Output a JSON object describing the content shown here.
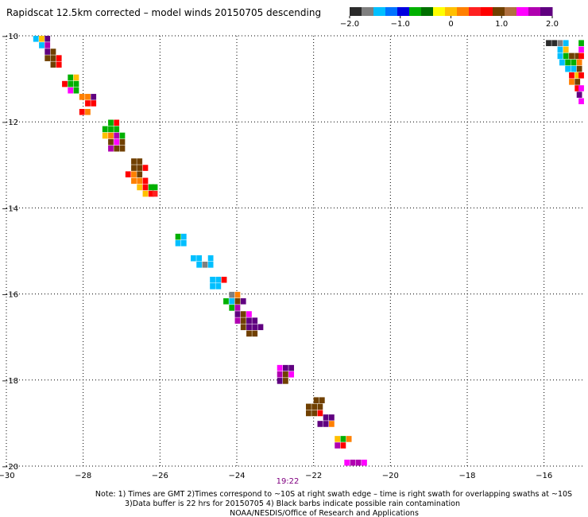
{
  "header": {
    "title": "Rapidscat 12.5km corrected – model winds 20150705 descending"
  },
  "colorbar": {
    "colors": [
      "#2b2b2b",
      "#7f7f7f",
      "#00bfff",
      "#0073ff",
      "#0000e0",
      "#00b000",
      "#007000",
      "#ffff00",
      "#ffc000",
      "#ff8000",
      "#ff2020",
      "#ff0000",
      "#704000",
      "#b07040",
      "#ff00ff",
      "#b000b0",
      "#600080"
    ],
    "ticks": [
      {
        "label": "−2.0",
        "value": -2.0
      },
      {
        "label": "−1.0",
        "value": -1.0
      },
      {
        "label": "0",
        "value": 0
      },
      {
        "label": "1.0",
        "value": 1.0
      },
      {
        "label": "2.0",
        "value": 2.0
      }
    ]
  },
  "chart_data": {
    "type": "heatmap",
    "title": "Rapidscat 12.5km corrected – model winds 20150705 descending",
    "x_axis": {
      "range": [
        -30,
        -15
      ],
      "ticks": [
        -30,
        -28,
        -26,
        -24,
        -22,
        -20,
        -18,
        -16
      ],
      "tick_labels": [
        "−30",
        "−28",
        "−26",
        "−24",
        "−22",
        "−20",
        "−18",
        "−16"
      ]
    },
    "y_axis": {
      "range": [
        -20,
        -10
      ],
      "ticks": [
        -10,
        -12,
        -14,
        -16,
        -18,
        -20
      ],
      "tick_labels": [
        "−10",
        "−12",
        "−14",
        "−16",
        "−18",
        "−20"
      ]
    },
    "grid": true,
    "value_range": [
      -2.0,
      2.0
    ],
    "cell_size_deg": 0.14,
    "cells": [
      {
        "x": -29.3,
        "y": -10.0,
        "v": -1.5
      },
      {
        "x": -29.15,
        "y": -10.0,
        "v": 0.1
      },
      {
        "x": -29.0,
        "y": -10.0,
        "v": 2.0
      },
      {
        "x": -29.15,
        "y": -10.15,
        "v": -1.5
      },
      {
        "x": -29.0,
        "y": -10.15,
        "v": 1.6
      },
      {
        "x": -29.0,
        "y": -10.3,
        "v": 1.95
      },
      {
        "x": -28.85,
        "y": -10.3,
        "v": 0.9
      },
      {
        "x": -29.0,
        "y": -10.45,
        "v": 0.9
      },
      {
        "x": -28.85,
        "y": -10.45,
        "v": 0.9
      },
      {
        "x": -28.7,
        "y": -10.45,
        "v": 0.8
      },
      {
        "x": -28.85,
        "y": -10.6,
        "v": 0.9
      },
      {
        "x": -28.7,
        "y": -10.6,
        "v": 0.8
      },
      {
        "x": -28.4,
        "y": -10.9,
        "v": -0.8
      },
      {
        "x": -28.25,
        "y": -10.9,
        "v": 0.1
      },
      {
        "x": -28.55,
        "y": -11.05,
        "v": 0.6
      },
      {
        "x": -28.4,
        "y": -11.05,
        "v": -0.8
      },
      {
        "x": -28.25,
        "y": -11.05,
        "v": -0.7
      },
      {
        "x": -28.4,
        "y": -11.2,
        "v": 1.3
      },
      {
        "x": -28.25,
        "y": -11.2,
        "v": -0.7
      },
      {
        "x": -28.1,
        "y": -11.35,
        "v": 0.2
      },
      {
        "x": -27.95,
        "y": -11.35,
        "v": 0.3
      },
      {
        "x": -27.8,
        "y": -11.35,
        "v": 1.9
      },
      {
        "x": -27.95,
        "y": -11.5,
        "v": 0.6
      },
      {
        "x": -27.8,
        "y": -11.5,
        "v": 0.6
      },
      {
        "x": -28.1,
        "y": -11.7,
        "v": 0.6
      },
      {
        "x": -27.95,
        "y": -11.7,
        "v": 0.3
      },
      {
        "x": -27.35,
        "y": -11.95,
        "v": -0.8
      },
      {
        "x": -27.2,
        "y": -11.95,
        "v": 0.6
      },
      {
        "x": -27.5,
        "y": -12.1,
        "v": -0.8
      },
      {
        "x": -27.35,
        "y": -12.1,
        "v": -0.8
      },
      {
        "x": -27.2,
        "y": -12.1,
        "v": -0.7
      },
      {
        "x": -27.5,
        "y": -12.25,
        "v": 0.1
      },
      {
        "x": -27.35,
        "y": -12.25,
        "v": 0.2
      },
      {
        "x": -27.2,
        "y": -12.25,
        "v": 1.6
      },
      {
        "x": -27.35,
        "y": -12.4,
        "v": 0.9
      },
      {
        "x": -27.2,
        "y": -12.4,
        "v": 1.3
      },
      {
        "x": -27.35,
        "y": -12.55,
        "v": 1.6
      },
      {
        "x": -27.2,
        "y": -12.55,
        "v": 0.9
      },
      {
        "x": -27.05,
        "y": -12.25,
        "v": -0.7
      },
      {
        "x": -27.05,
        "y": -12.4,
        "v": 0.9
      },
      {
        "x": -27.05,
        "y": -12.55,
        "v": 0.9
      },
      {
        "x": -26.75,
        "y": -12.85,
        "v": 0.9
      },
      {
        "x": -26.6,
        "y": -12.85,
        "v": 0.9
      },
      {
        "x": -26.75,
        "y": -13.0,
        "v": 0.9
      },
      {
        "x": -26.6,
        "y": -13.0,
        "v": 0.9
      },
      {
        "x": -26.45,
        "y": -13.0,
        "v": 0.6
      },
      {
        "x": -26.9,
        "y": -13.15,
        "v": 0.6
      },
      {
        "x": -26.75,
        "y": -13.15,
        "v": 0.2
      },
      {
        "x": -26.6,
        "y": -13.15,
        "v": 0.9
      },
      {
        "x": -26.75,
        "y": -13.3,
        "v": 0.2
      },
      {
        "x": -26.6,
        "y": -13.3,
        "v": 0.3
      },
      {
        "x": -26.45,
        "y": -13.3,
        "v": 0.6
      },
      {
        "x": -26.6,
        "y": -13.45,
        "v": 0.1
      },
      {
        "x": -26.45,
        "y": -13.45,
        "v": 0.6
      },
      {
        "x": -26.3,
        "y": -13.45,
        "v": -0.7
      },
      {
        "x": -26.2,
        "y": -13.45,
        "v": -0.7
      },
      {
        "x": -26.45,
        "y": -13.6,
        "v": 0.1
      },
      {
        "x": -26.3,
        "y": -13.6,
        "v": 0.6
      },
      {
        "x": -26.2,
        "y": -13.6,
        "v": 0.5
      },
      {
        "x": -25.6,
        "y": -14.6,
        "v": -0.8
      },
      {
        "x": -25.45,
        "y": -14.6,
        "v": -1.3
      },
      {
        "x": -25.6,
        "y": -14.75,
        "v": -1.3
      },
      {
        "x": -25.45,
        "y": -14.75,
        "v": -1.3
      },
      {
        "x": -25.2,
        "y": -15.1,
        "v": -1.3
      },
      {
        "x": -25.05,
        "y": -15.1,
        "v": -1.3
      },
      {
        "x": -25.05,
        "y": -15.25,
        "v": -1.3
      },
      {
        "x": -24.9,
        "y": -15.25,
        "v": -1.6
      },
      {
        "x": -24.75,
        "y": -15.1,
        "v": -1.5
      },
      {
        "x": -24.75,
        "y": -15.25,
        "v": -1.3
      },
      {
        "x": -24.7,
        "y": -15.6,
        "v": -1.3
      },
      {
        "x": -24.55,
        "y": -15.6,
        "v": -1.3
      },
      {
        "x": -24.4,
        "y": -15.6,
        "v": 0.6
      },
      {
        "x": -24.7,
        "y": -15.75,
        "v": -1.3
      },
      {
        "x": -24.55,
        "y": -15.75,
        "v": -1.3
      },
      {
        "x": -24.2,
        "y": -15.95,
        "v": -1.6
      },
      {
        "x": -24.05,
        "y": -15.95,
        "v": 0.3
      },
      {
        "x": -24.35,
        "y": -16.1,
        "v": -0.8
      },
      {
        "x": -24.2,
        "y": -16.1,
        "v": -1.3
      },
      {
        "x": -24.05,
        "y": -16.1,
        "v": 0.9
      },
      {
        "x": -23.9,
        "y": -16.1,
        "v": 1.8
      },
      {
        "x": -24.2,
        "y": -16.25,
        "v": -0.8
      },
      {
        "x": -24.05,
        "y": -16.25,
        "v": 1.6
      },
      {
        "x": -24.05,
        "y": -16.4,
        "v": 1.9
      },
      {
        "x": -23.9,
        "y": -16.4,
        "v": 0.9
      },
      {
        "x": -23.75,
        "y": -16.4,
        "v": 1.3
      },
      {
        "x": -24.05,
        "y": -16.55,
        "v": 1.6
      },
      {
        "x": -23.9,
        "y": -16.55,
        "v": 0.9
      },
      {
        "x": -23.75,
        "y": -16.55,
        "v": 2.0
      },
      {
        "x": -23.6,
        "y": -16.55,
        "v": 2.0
      },
      {
        "x": -23.9,
        "y": -16.7,
        "v": 0.9
      },
      {
        "x": -23.75,
        "y": -16.7,
        "v": 2.0
      },
      {
        "x": -23.6,
        "y": -16.7,
        "v": 2.0
      },
      {
        "x": -23.45,
        "y": -16.7,
        "v": 1.9
      },
      {
        "x": -23.75,
        "y": -16.85,
        "v": 0.9
      },
      {
        "x": -23.6,
        "y": -16.85,
        "v": 0.9
      },
      {
        "x": -22.95,
        "y": -17.65,
        "v": 1.3
      },
      {
        "x": -22.8,
        "y": -17.65,
        "v": 1.9
      },
      {
        "x": -22.65,
        "y": -17.65,
        "v": 2.0
      },
      {
        "x": -22.95,
        "y": -17.8,
        "v": 1.6
      },
      {
        "x": -22.8,
        "y": -17.8,
        "v": 0.9
      },
      {
        "x": -22.65,
        "y": -17.8,
        "v": 1.3
      },
      {
        "x": -22.95,
        "y": -17.95,
        "v": 2.0
      },
      {
        "x": -22.8,
        "y": -17.95,
        "v": 0.9
      },
      {
        "x": -22.0,
        "y": -18.4,
        "v": 0.9
      },
      {
        "x": -21.85,
        "y": -18.4,
        "v": 0.9
      },
      {
        "x": -22.2,
        "y": -18.55,
        "v": 0.9
      },
      {
        "x": -22.05,
        "y": -18.55,
        "v": 0.9
      },
      {
        "x": -21.9,
        "y": -18.55,
        "v": 0.9
      },
      {
        "x": -22.2,
        "y": -18.7,
        "v": 0.9
      },
      {
        "x": -22.05,
        "y": -18.7,
        "v": 0.9
      },
      {
        "x": -21.9,
        "y": -18.7,
        "v": 0.6
      },
      {
        "x": -21.75,
        "y": -18.8,
        "v": 1.9
      },
      {
        "x": -21.6,
        "y": -18.8,
        "v": 1.9
      },
      {
        "x": -21.9,
        "y": -18.95,
        "v": 2.0
      },
      {
        "x": -21.75,
        "y": -18.95,
        "v": 1.9
      },
      {
        "x": -21.6,
        "y": -18.95,
        "v": 0.2
      },
      {
        "x": -21.45,
        "y": -19.3,
        "v": 0.1
      },
      {
        "x": -21.3,
        "y": -19.3,
        "v": -0.8
      },
      {
        "x": -21.15,
        "y": -19.3,
        "v": 0.3
      },
      {
        "x": -21.45,
        "y": -19.45,
        "v": 1.6
      },
      {
        "x": -21.3,
        "y": -19.45,
        "v": 0.6
      },
      {
        "x": -21.2,
        "y": -19.85,
        "v": 1.3
      },
      {
        "x": -21.05,
        "y": -19.85,
        "v": 1.6
      },
      {
        "x": -20.9,
        "y": -19.85,
        "v": 1.6
      },
      {
        "x": -20.75,
        "y": -19.85,
        "v": 1.5
      },
      {
        "x": -15.95,
        "y": -10.1,
        "v": -1.9
      },
      {
        "x": -15.8,
        "y": -10.1,
        "v": -1.9
      },
      {
        "x": -15.65,
        "y": -10.1,
        "v": -1.6
      },
      {
        "x": -15.5,
        "y": -10.1,
        "v": -1.5
      },
      {
        "x": -15.1,
        "y": -10.1,
        "v": -0.7
      },
      {
        "x": -15.65,
        "y": -10.25,
        "v": -1.3
      },
      {
        "x": -15.5,
        "y": -10.25,
        "v": 0.1
      },
      {
        "x": -15.1,
        "y": -10.25,
        "v": 1.3
      },
      {
        "x": -15.65,
        "y": -10.4,
        "v": -1.5
      },
      {
        "x": -15.5,
        "y": -10.4,
        "v": -0.8
      },
      {
        "x": -15.35,
        "y": -10.4,
        "v": 0.9
      },
      {
        "x": -15.2,
        "y": -10.4,
        "v": 0.9
      },
      {
        "x": -15.1,
        "y": -10.4,
        "v": 0.6
      },
      {
        "x": -15.6,
        "y": -10.55,
        "v": -1.3
      },
      {
        "x": -15.45,
        "y": -10.55,
        "v": -0.8
      },
      {
        "x": -15.3,
        "y": -10.55,
        "v": -0.7
      },
      {
        "x": -15.15,
        "y": -10.55,
        "v": 0.2
      },
      {
        "x": -15.45,
        "y": -10.7,
        "v": -1.3
      },
      {
        "x": -15.3,
        "y": -10.7,
        "v": -1.3
      },
      {
        "x": -15.15,
        "y": -10.7,
        "v": 0.9
      },
      {
        "x": -15.35,
        "y": -10.85,
        "v": 0.6
      },
      {
        "x": -15.2,
        "y": -10.85,
        "v": 0.1
      },
      {
        "x": -15.1,
        "y": -10.85,
        "v": 0.6
      },
      {
        "x": -15.35,
        "y": -11.0,
        "v": 0.2
      },
      {
        "x": -15.2,
        "y": -11.0,
        "v": 0.9
      },
      {
        "x": -15.2,
        "y": -11.15,
        "v": 0.6
      },
      {
        "x": -15.1,
        "y": -11.15,
        "v": 1.3
      },
      {
        "x": -15.15,
        "y": -11.3,
        "v": 2.0
      },
      {
        "x": -15.1,
        "y": -11.45,
        "v": 1.5
      }
    ]
  },
  "time_label": "19:22",
  "notes": [
    "Note: 1) Times are GMT 2)Times correspond to ~10S at right swath edge – time is right swath for overlapping swaths at ~10S",
    "3)Data buffer is 22 hrs for 20150705 4) Black barbs indicate possible rain contamination",
    "NOAA/NESDIS/Office of Research and Applications"
  ]
}
